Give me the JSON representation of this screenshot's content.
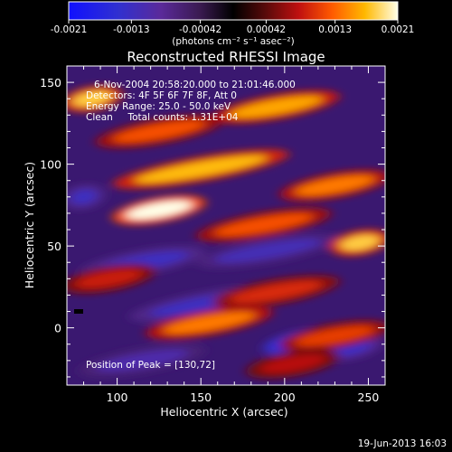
{
  "chart_data": {
    "type": "heatmap",
    "title": "Reconstructed RHESSI Image",
    "xlabel": "Heliocentric X (arcsec)",
    "ylabel": "Heliocentric Y (arcsec)",
    "xlim": [
      70,
      260
    ],
    "ylim": [
      -35,
      160
    ],
    "x_ticks": [
      "100",
      "150",
      "200",
      "250"
    ],
    "y_ticks": [
      "0",
      "50",
      "100",
      "150"
    ],
    "colorbar": {
      "min": -0.0021,
      "max": 0.0021,
      "tick_labels": [
        "-0.0021",
        "-0.0013",
        "-0.00042",
        "0.00042",
        "0.0013",
        "0.0021"
      ],
      "units": "(photons cm⁻² s⁻¹ asec⁻²)"
    },
    "annotations": [
      "6-Nov-2004 20:58:20.000 to 21:01:46.000",
      "Detectors: 4F 5F 6F 7F 8F, Att 0",
      "Energy Range: 25.0 - 50.0 keV",
      "Clean     Total counts: 1.31E+04"
    ],
    "peak": {
      "label": "Position of Peak = [130,72]",
      "x": 130,
      "y": 72
    },
    "bright_bands": [
      {
        "x": [
          70,
          100
        ],
        "y": 140,
        "intensity": 0.0018
      },
      {
        "x": [
          160,
          230
        ],
        "y": 135,
        "intensity": 0.0016
      },
      {
        "x": [
          90,
          160
        ],
        "y": 120,
        "intensity": 0.0012
      },
      {
        "x": [
          100,
          200
        ],
        "y": 97,
        "intensity": 0.0017
      },
      {
        "x": [
          200,
          260
        ],
        "y": 87,
        "intensity": 0.0014
      },
      {
        "x": [
          100,
          150
        ],
        "y": 72,
        "intensity": 0.0021
      },
      {
        "x": [
          150,
          225
        ],
        "y": 63,
        "intensity": 0.0012
      },
      {
        "x": [
          230,
          260
        ],
        "y": 52,
        "intensity": 0.0018
      },
      {
        "x": [
          70,
          120
        ],
        "y": 30,
        "intensity": 0.0009
      },
      {
        "x": [
          160,
          230
        ],
        "y": 22,
        "intensity": 0.001
      },
      {
        "x": [
          120,
          190
        ],
        "y": 3,
        "intensity": 0.0014
      },
      {
        "x": [
          200,
          260
        ],
        "y": -5,
        "intensity": 0.0011
      },
      {
        "x": [
          180,
          230
        ],
        "y": -22,
        "intensity": 0.0008
      }
    ],
    "dark_bands": [
      {
        "x": [
          70,
          90
        ],
        "y": 80,
        "intensity": -0.0011
      },
      {
        "x": [
          150,
          230
        ],
        "y": 47,
        "intensity": -0.001
      },
      {
        "x": [
          80,
          150
        ],
        "y": 40,
        "intensity": -0.0011
      },
      {
        "x": [
          110,
          200
        ],
        "y": 15,
        "intensity": -0.0011
      },
      {
        "x": [
          190,
          240
        ],
        "y": -8,
        "intensity": -0.0021
      },
      {
        "x": [
          220,
          255
        ],
        "y": -12,
        "intensity": -0.0012
      },
      {
        "x": [
          80,
          150
        ],
        "y": -20,
        "intensity": -0.0009
      }
    ]
  },
  "footer_date": "19-Jun-2013 16:03"
}
